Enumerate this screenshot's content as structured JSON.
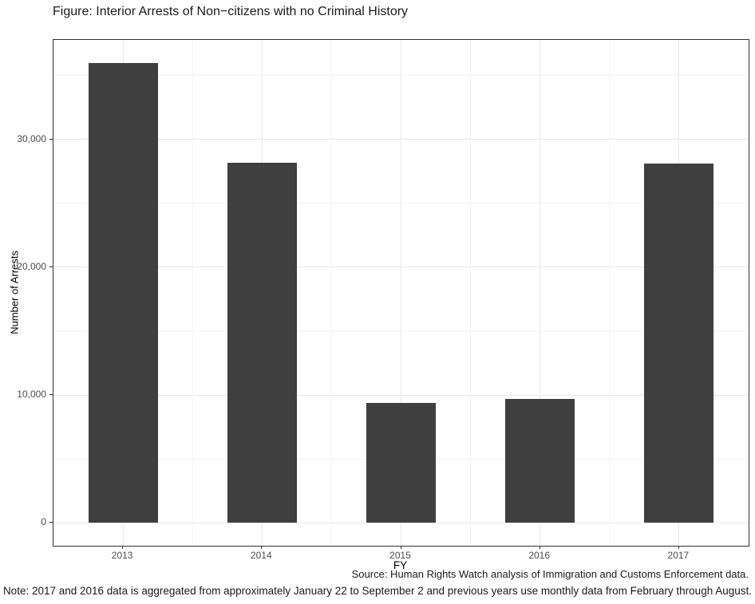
{
  "figure": {
    "source": "Source: Human Rights Watch analysis of Immigration and Customs Enforcement data.",
    "note": "Note: 2017 and 2016 data is aggregated from approximately January 22 to September 2 and previous years use monthly data from February through August."
  },
  "chart_data": {
    "type": "bar",
    "title": "Figure: Interior Arrests of Non−citizens with no Criminal History",
    "categories": [
      "2013",
      "2014",
      "2015",
      "2016",
      "2017"
    ],
    "values": [
      36000,
      28200,
      9400,
      9700,
      28100
    ],
    "xlabel": "FY",
    "ylabel": "Number of Arrests",
    "ylim": [
      -1800,
      37800
    ],
    "yticks": [
      0,
      10000,
      20000,
      30000
    ],
    "ytick_labels": [
      "0",
      "10,000",
      "20,000",
      "30,000"
    ],
    "yminor": [
      5000,
      15000,
      25000,
      35000
    ],
    "grid": true,
    "legend_position": "none",
    "bar_color": "#3F3F3F",
    "bar_rel_width": 0.5,
    "baseline": 0
  }
}
